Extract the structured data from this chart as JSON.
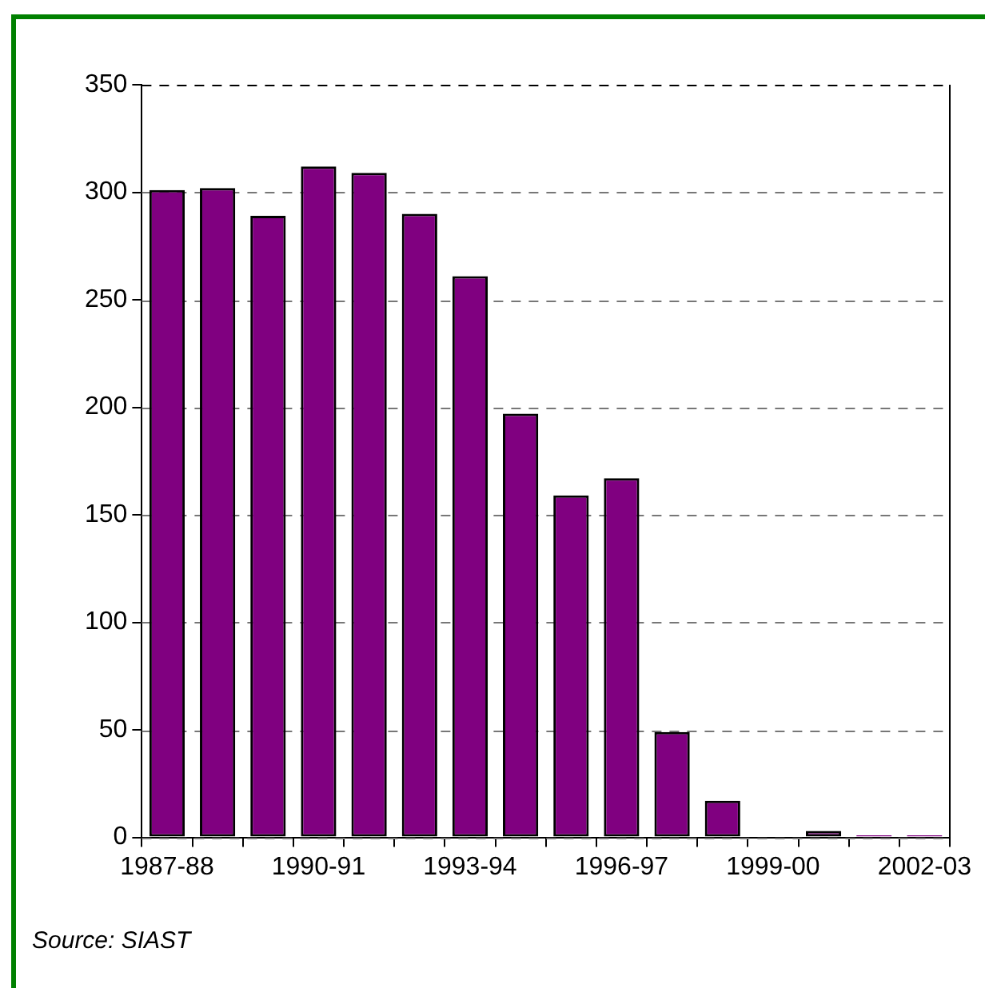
{
  "chart_data": {
    "type": "bar",
    "categories": [
      "1987-88",
      null,
      null,
      "1990-91",
      null,
      null,
      "1993-94",
      null,
      null,
      "1996-97",
      null,
      null,
      "1999-00",
      null,
      null,
      "2002-03"
    ],
    "values": [
      301,
      302,
      289,
      312,
      309,
      290,
      261,
      197,
      159,
      167,
      49,
      17,
      null,
      3,
      1,
      1
    ],
    "color": "#800080",
    "ylim": [
      0,
      350
    ],
    "yticks": [
      0,
      50,
      100,
      150,
      200,
      250,
      300,
      350
    ],
    "grid": "y",
    "line_style": "dashed",
    "annotations": [
      "Source: SIAST"
    ]
  }
}
